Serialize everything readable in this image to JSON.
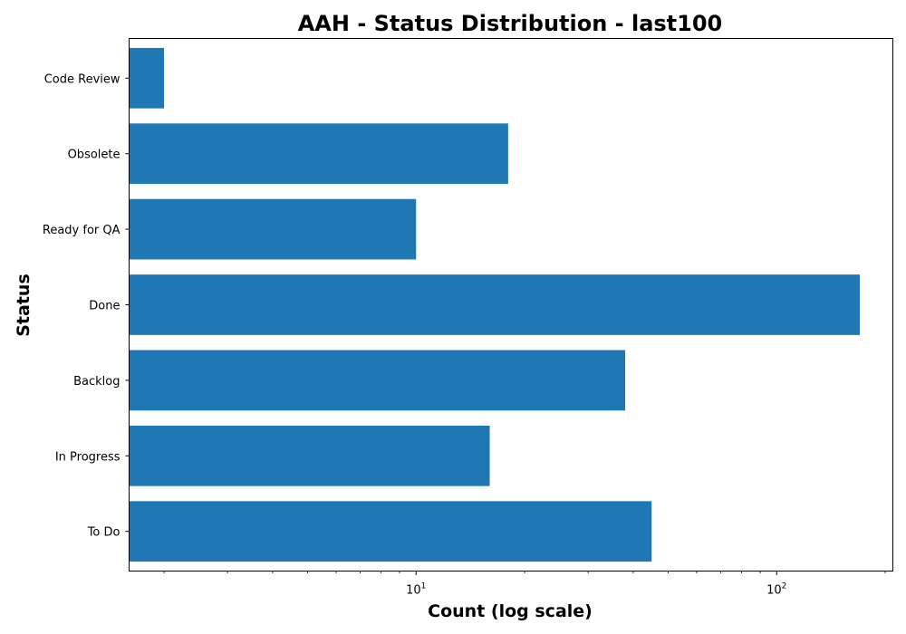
{
  "chart_data": {
    "type": "bar",
    "orientation": "horizontal",
    "title": "AAH - Status Distribution - last100",
    "xlabel": "Count (log scale)",
    "ylabel": "Status",
    "x_scale": "log",
    "xlim": [
      1.6,
      210
    ],
    "x_major_ticks": [
      {
        "value": 10,
        "base": "10",
        "exp": "1"
      },
      {
        "value": 100,
        "base": "10",
        "exp": "2"
      }
    ],
    "x_minor_ticks": [
      2,
      3,
      4,
      5,
      6,
      7,
      8,
      9,
      20,
      30,
      40,
      50,
      60,
      70,
      80,
      90,
      200
    ],
    "categories": [
      "To Do",
      "In Progress",
      "Backlog",
      "Done",
      "Ready for QA",
      "Obsolete",
      "Code Review"
    ],
    "values": [
      45,
      16,
      38,
      170,
      10,
      18,
      2
    ],
    "bar_color": "#1f77b4",
    "grid": false,
    "legend": "none"
  }
}
